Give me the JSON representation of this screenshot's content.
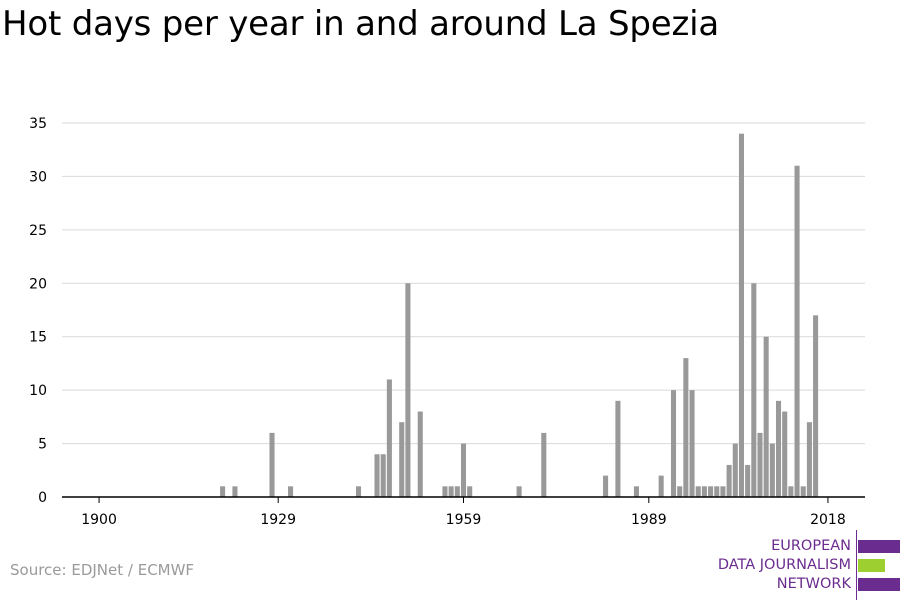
{
  "title": "Hot days per year in and around La Spezia",
  "source": "Source: EDJNet / ECMWF",
  "logo": {
    "line1": "EUROPEAN",
    "line2": "DATA JOURNALISM",
    "line3": "NETWORK",
    "colors": {
      "purple": "#6b2c8f",
      "green": "#9ccf2f"
    }
  },
  "chart_data": {
    "type": "bar",
    "title": "Hot days per year in and around La Spezia",
    "xlabel": "",
    "ylabel": "",
    "bar_color": "#999999",
    "grid": true,
    "xlim": [
      1894,
      2024
    ],
    "ylim": [
      0,
      35
    ],
    "x_ticks": [
      1900,
      1929,
      1959,
      1989,
      2018
    ],
    "y_ticks": [
      0,
      5,
      10,
      15,
      20,
      25,
      30,
      35
    ],
    "x": [
      1920,
      1922,
      1928,
      1931,
      1942,
      1945,
      1946,
      1947,
      1949,
      1950,
      1952,
      1956,
      1957,
      1958,
      1959,
      1960,
      1968,
      1972,
      1982,
      1984,
      1987,
      1991,
      1993,
      1994,
      1995,
      1996,
      1997,
      1998,
      1999,
      2000,
      2001,
      2002,
      2003,
      2004,
      2005,
      2006,
      2007,
      2008,
      2009,
      2010,
      2011,
      2012,
      2013,
      2014,
      2015,
      2016,
      2017,
      2018
    ],
    "values": [
      1,
      1,
      6,
      1,
      1,
      4,
      4,
      11,
      7,
      20,
      8,
      1,
      1,
      1,
      5,
      1,
      1,
      6,
      2,
      9,
      1,
      2,
      10,
      1,
      13,
      10,
      1,
      1,
      1,
      1,
      1,
      3,
      5,
      34,
      3,
      20,
      6,
      15,
      5,
      9,
      8,
      1,
      31,
      1,
      7,
      17,
      0,
      0
    ]
  }
}
